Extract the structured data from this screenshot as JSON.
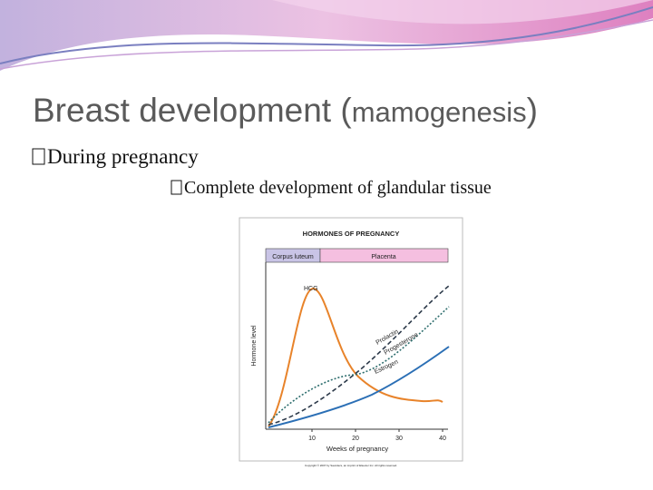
{
  "slide": {
    "title": {
      "main": "Breast development (",
      "sub": "mamogenesis",
      "close": ")"
    },
    "bullets": [
      "During pregnancy",
      "Complete development of glandular tissue"
    ]
  },
  "figure": {
    "title": "HORMONES OF PREGNANCY",
    "phases": [
      "Corpus luteum",
      "Placenta"
    ],
    "y_label": "Hormone level",
    "x_label": "Weeks of pregnancy",
    "xticks": [
      10,
      20,
      30,
      40
    ],
    "curves": [
      "HCG",
      "Prolactin",
      "Progesterone",
      "Estrogen"
    ],
    "copyright": "Copyright © 2007 by Saunders, an imprint of Elsevier Inc. All rights reserved."
  }
}
